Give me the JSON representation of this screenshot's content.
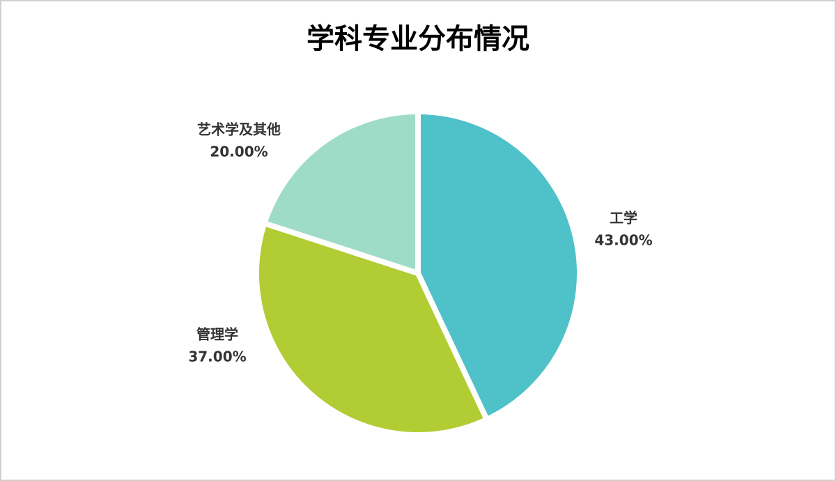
{
  "chart_data": {
    "type": "pie",
    "title": "学科专业分布情况",
    "categories": [
      "工学",
      "管理学",
      "艺术学及其他"
    ],
    "values": [
      43,
      37,
      20
    ],
    "value_labels": [
      "43.00%",
      "37.00%",
      "20.00%"
    ],
    "colors": [
      "#4fc1c9",
      "#b2cc34",
      "#9edcc8"
    ]
  }
}
